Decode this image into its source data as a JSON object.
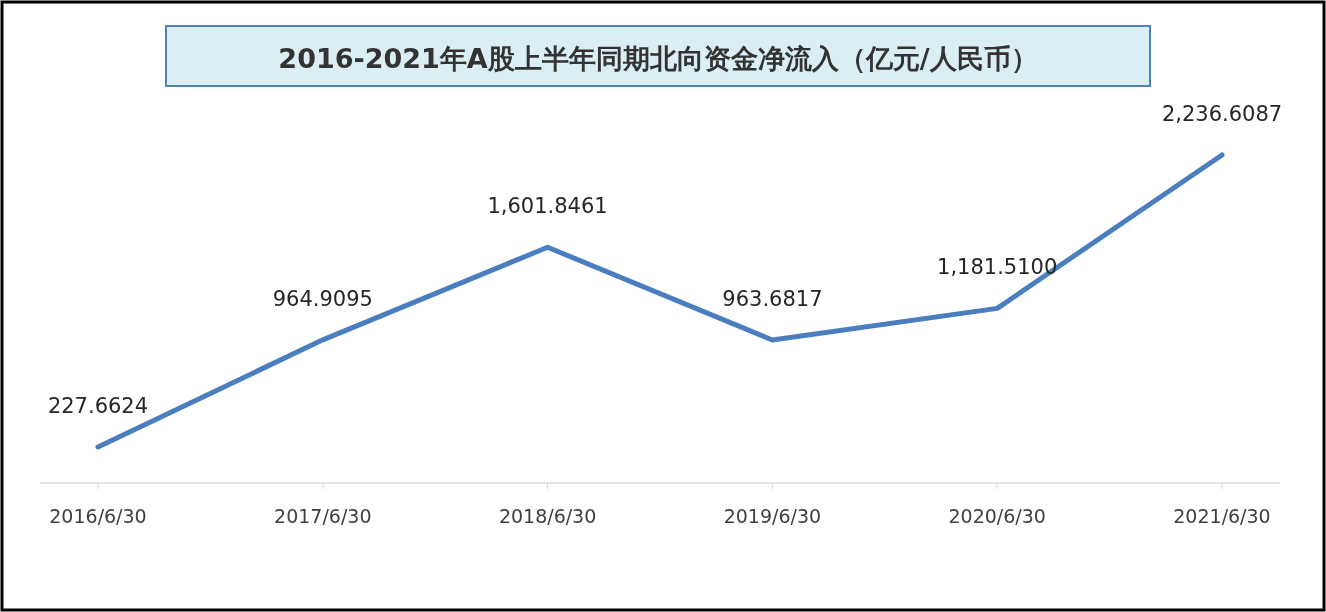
{
  "chart_data": {
    "type": "line",
    "title": "2016-2021年A股上半年同期北向资金净流入（亿元/人民币）",
    "categories": [
      "2016/6/30",
      "2017/6/30",
      "2018/6/30",
      "2019/6/30",
      "2020/6/30",
      "2021/6/30"
    ],
    "series": [
      {
        "color": "#4a7ebf",
        "values": [
          227.6624,
          964.9095,
          1601.8461,
          963.6817,
          1181.51,
          2236.6087
        ],
        "value_labels": [
          "227.6624",
          "964.9095",
          "1,601.8461",
          "963.6817",
          "1,181.5100",
          "2,236.6087"
        ]
      }
    ],
    "data_labels": true,
    "marker": "none",
    "line_style": "solid",
    "tick_labels": "x"
  }
}
